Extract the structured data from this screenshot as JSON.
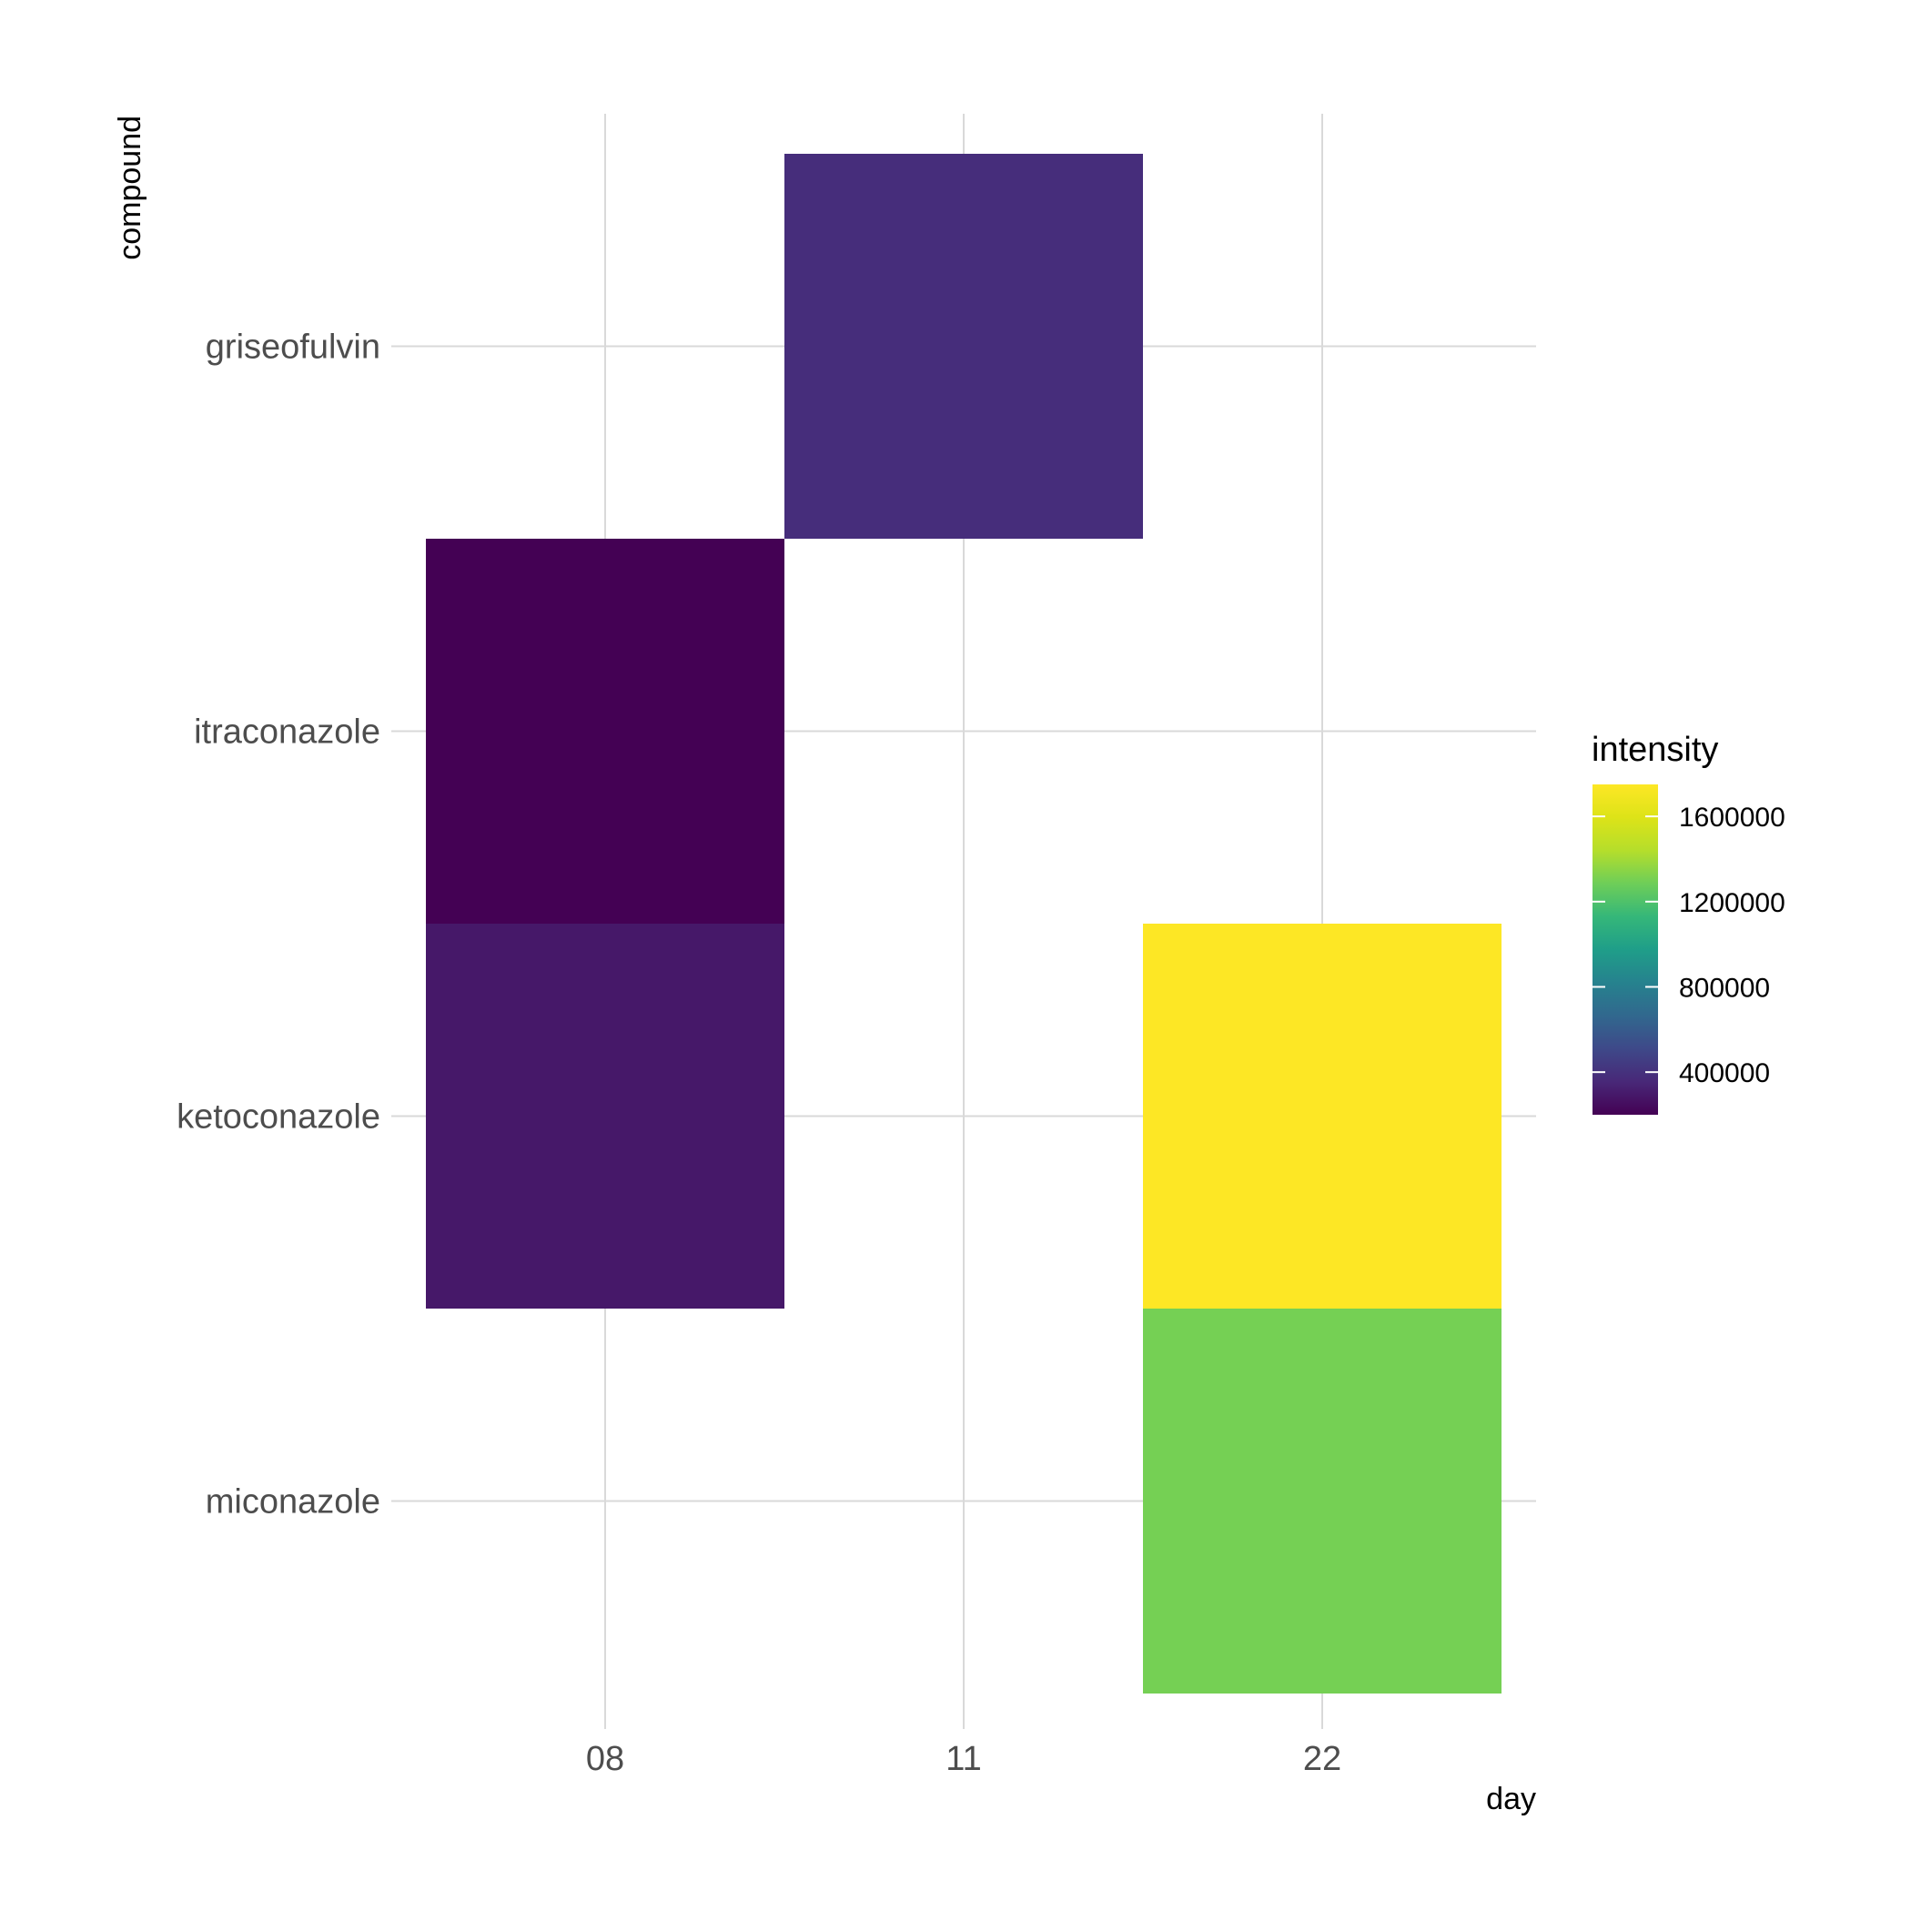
{
  "chart_data": {
    "type": "heatmap",
    "title": "",
    "xlabel": "day",
    "ylabel": "compound",
    "x_categories": [
      "08",
      "11",
      "22"
    ],
    "y_categories": [
      "griseofulvin",
      "itraconazole",
      "ketoconazole",
      "miconazole"
    ],
    "cells": [
      {
        "x": "11",
        "y": "griseofulvin",
        "value": 380000
      },
      {
        "x": "08",
        "y": "itraconazole",
        "value": 200000
      },
      {
        "x": "08",
        "y": "ketoconazole",
        "value": 290000
      },
      {
        "x": "22",
        "y": "ketoconazole",
        "value": 1750000
      },
      {
        "x": "22",
        "y": "miconazole",
        "value": 1300000
      }
    ],
    "grid": true,
    "legend": {
      "title": "intensity",
      "placement": "right",
      "colormap": "viridis",
      "range": [
        200000,
        1750000
      ],
      "ticks": [
        400000,
        800000,
        1200000,
        1600000
      ],
      "tick_labels": [
        "400000",
        "800000",
        "1200000",
        "1600000"
      ]
    }
  }
}
